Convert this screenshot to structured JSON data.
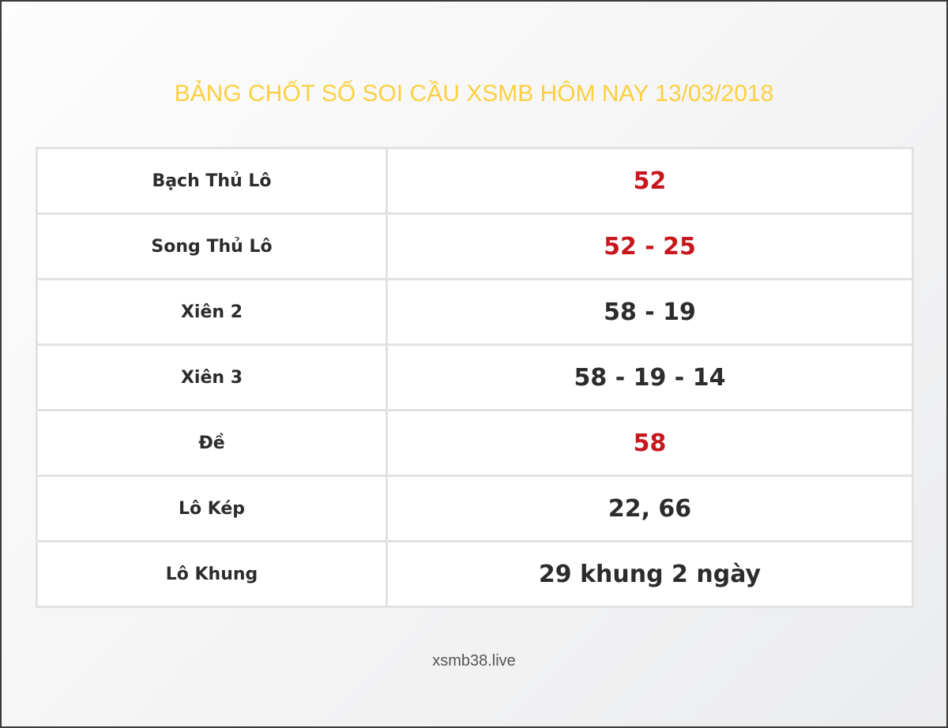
{
  "title": "BẢNG CHỐT SỐ SOI CẦU XSMB HÔM NAY 13/03/2018",
  "accent_color": "#fcd03f",
  "highlight_color": "#c8161d",
  "rows": [
    {
      "label": "Bạch Thủ Lô",
      "value": "52",
      "highlight": true
    },
    {
      "label": "Song Thủ Lô",
      "value": "52 - 25",
      "highlight": true
    },
    {
      "label": "Xiên 2",
      "value": "58 - 19",
      "highlight": false
    },
    {
      "label": "Xiên 3",
      "value": "58 - 19 - 14",
      "highlight": false
    },
    {
      "label": "Đề",
      "value": "58",
      "highlight": true
    },
    {
      "label": "Lô Kép",
      "value": "22, 66",
      "highlight": false
    },
    {
      "label": "Lô Khung",
      "value": "29 khung 2 ngày",
      "highlight": false
    }
  ],
  "footer": "xsmb38.live"
}
